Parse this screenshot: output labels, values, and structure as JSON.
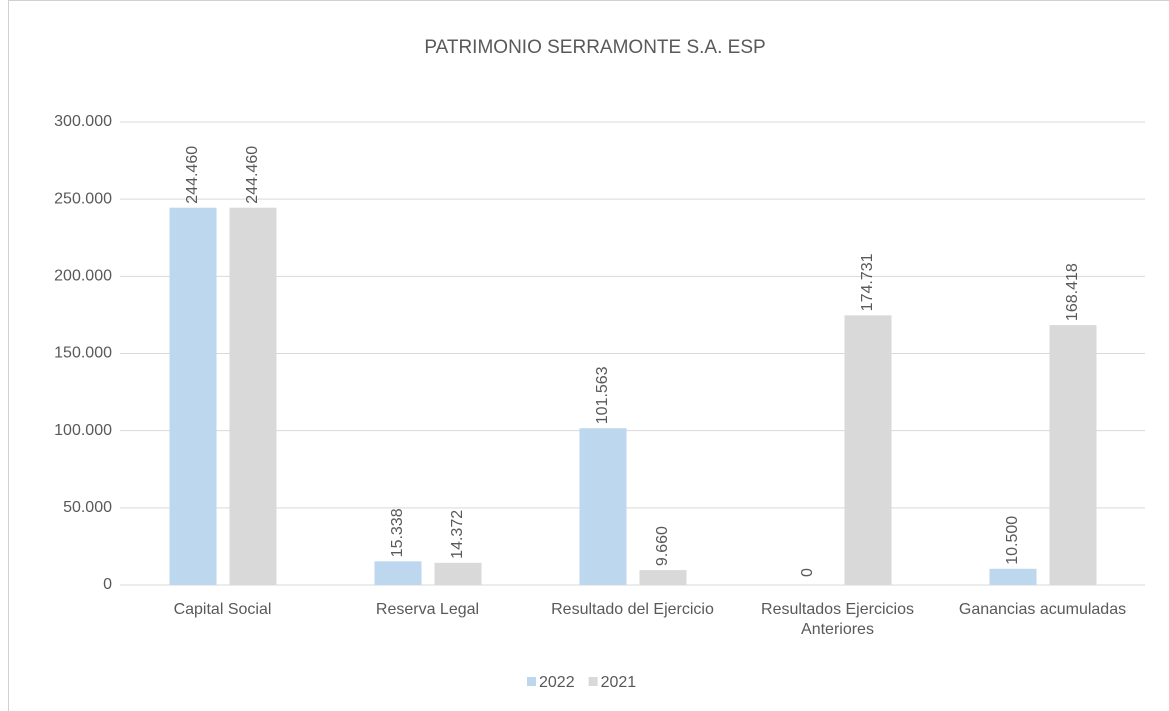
{
  "chart_data": {
    "type": "bar",
    "title": "PATRIMONIO SERRAMONTE S.A. ESP",
    "categories": [
      "Capital Social",
      "Reserva Legal",
      "Resultado del Ejercicio",
      "Resultados Ejercicios Anteriores",
      "Ganancias acumuladas"
    ],
    "series": [
      {
        "name": "2022",
        "color": "#bdd7ee",
        "values": [
          244460,
          15338,
          101563,
          0,
          10500
        ],
        "value_labels": [
          "244.460",
          "15.338",
          "101.563",
          "0",
          "10.500"
        ]
      },
      {
        "name": "2021",
        "color": "#d9d9d9",
        "values": [
          244460,
          14372,
          9660,
          174731,
          168418
        ],
        "value_labels": [
          "244.460",
          "14.372",
          "9.660",
          "174.731",
          "168.418"
        ]
      }
    ],
    "ylim": [
      0,
      300000
    ],
    "yticks": [
      0,
      {
        "value": 50000,
        "label": "50.000"
      },
      {
        "value": 100000,
        "label": "100.000"
      },
      {
        "value": 150000,
        "label": "150.000"
      },
      {
        "value": 200000,
        "label": "200.000"
      },
      {
        "value": 250000,
        "label": "250.000"
      },
      {
        "value": 300000,
        "label": "300.000"
      }
    ],
    "grid": true,
    "legend": "bottom"
  }
}
